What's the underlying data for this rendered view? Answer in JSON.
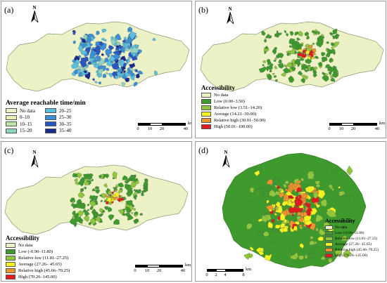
{
  "colors": {
    "region_fill": "#edf2c6",
    "region_stroke": "#8a9a72",
    "low_green": "#3e9a2c",
    "relative_low": "#8fc63c",
    "average": "#f3f321",
    "relative_high": "#f0932d",
    "high": "#e31a1c",
    "time_0_10": "#eaf2b2",
    "time_10_15": "#bfe3a8",
    "time_15_20": "#8fd4c2",
    "time_20_25": "#5ac0de",
    "time_25_30": "#3b8fd6",
    "time_30_35": "#2a58c2",
    "time_35_40": "#1a2b8e"
  },
  "panels": {
    "a": {
      "label": "(a)",
      "north": "N",
      "legend": {
        "title": "Average reachable time/min",
        "col1": [
          {
            "label": "No data",
            "color": "#edf2c6"
          },
          {
            "label": "0–10",
            "color": "#eaf2b2"
          },
          {
            "label": "10–15",
            "color": "#bfe3a8"
          },
          {
            "label": "15–20",
            "color": "#8fd4c2"
          }
        ],
        "col2": [
          {
            "label": "20–25",
            "color": "#5ac0de"
          },
          {
            "label": "25–30",
            "color": "#3b8fd6"
          },
          {
            "label": "30–35",
            "color": "#2a58c2"
          },
          {
            "label": "35–40",
            "color": "#1a2b8e"
          }
        ]
      },
      "scale": {
        "ticks": [
          "0",
          "10",
          "20",
          "40"
        ],
        "unit": "km"
      }
    },
    "b": {
      "label": "(b)",
      "north": "N",
      "legend": {
        "title": "Accessibility",
        "items": [
          {
            "label": "No data",
            "color": "#edf2c6"
          },
          {
            "label": "Low (0.00–3.50)",
            "color": "#3e9a2c"
          },
          {
            "label": "Relative low (3.51–14.20)",
            "color": "#8fc63c"
          },
          {
            "label": "Average (14.21–30.00)",
            "color": "#f3f321"
          },
          {
            "label": "Relative high (30.01–50.00)",
            "color": "#f0932d"
          },
          {
            "label": "High (50.01–100.00)",
            "color": "#e31a1c"
          }
        ]
      },
      "scale": {
        "ticks": [
          "0",
          "10",
          "20",
          "40"
        ],
        "unit": "km"
      }
    },
    "c": {
      "label": "(c)",
      "north": "N",
      "legend": {
        "title": "Accessibility",
        "items": [
          {
            "label": "No data",
            "color": "#edf2c6"
          },
          {
            "label": "Low (-0.90–11.80)",
            "color": "#3e9a2c"
          },
          {
            "label": "Relative low (11.81–27.25)",
            "color": "#8fc63c"
          },
          {
            "label": "Average (27.26– 45.65)",
            "color": "#f3f321"
          },
          {
            "label": "Relative high (45.66–70.25)",
            "color": "#f0932d"
          },
          {
            "label": "High (70.26–145.00)",
            "color": "#e31a1c"
          }
        ]
      },
      "scale": {
        "ticks": [
          "0",
          "10",
          "20",
          "40"
        ],
        "unit": "km"
      }
    },
    "d": {
      "label": "(d)",
      "north": "N",
      "legend": {
        "title": "Accessibility",
        "items": [
          {
            "label": "No data",
            "color": "#edf2c6"
          },
          {
            "label": "Low (-0.90–11.80)",
            "color": "#3e9a2c"
          },
          {
            "label": "Relative low (11.81–27.25)",
            "color": "#8fc63c"
          },
          {
            "label": "Average (27.26– 45.65)",
            "color": "#f3f321"
          },
          {
            "label": "Relative high (45.66–70.25)",
            "color": "#f0932d"
          },
          {
            "label": "High (70.26–145.00)",
            "color": "#e31a1c"
          }
        ]
      },
      "scale": {
        "ticks": [
          "0",
          "2",
          "4",
          "8"
        ],
        "unit": "km"
      }
    }
  }
}
